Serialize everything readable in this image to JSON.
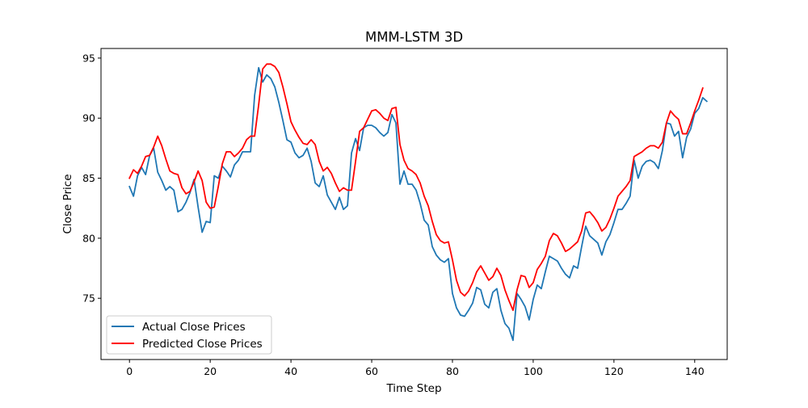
{
  "chart_data": {
    "type": "line",
    "title": "MMM-LSTM 3D",
    "xlabel": "Time Step",
    "ylabel": "Close Price",
    "xlim": [
      -7.05,
      148.05
    ],
    "ylim": [
      69.9,
      95.8
    ],
    "xticks": [
      0,
      20,
      40,
      60,
      80,
      100,
      120,
      140
    ],
    "yticks": [
      75,
      80,
      85,
      90,
      95
    ],
    "grid": false,
    "legend_position": "lower-left",
    "series": [
      {
        "name": "Actual Close Prices",
        "color": "#1f77b4",
        "values": [
          84.3,
          83.5,
          85.2,
          85.9,
          85.3,
          86.9,
          87.5,
          85.5,
          84.8,
          84.0,
          84.3,
          84.0,
          82.2,
          82.4,
          83.0,
          83.8,
          84.9,
          82.6,
          80.5,
          81.4,
          81.3,
          85.2,
          85.0,
          86.0,
          85.6,
          85.1,
          86.1,
          86.5,
          87.2,
          87.2,
          87.2,
          91.9,
          94.2,
          93.0,
          93.6,
          93.3,
          92.6,
          91.3,
          89.8,
          88.2,
          88.0,
          87.1,
          86.7,
          86.9,
          87.5,
          86.4,
          84.6,
          84.3,
          85.2,
          83.6,
          83.0,
          82.4,
          83.4,
          82.4,
          82.7,
          87.1,
          88.3,
          87.3,
          89.2,
          89.4,
          89.4,
          89.2,
          88.8,
          88.5,
          88.8,
          90.3,
          89.6,
          84.5,
          85.6,
          84.5,
          84.5,
          84.0,
          82.9,
          81.5,
          81.1,
          79.3,
          78.6,
          78.2,
          78.0,
          78.3,
          75.4,
          74.2,
          73.6,
          73.5,
          74.0,
          74.6,
          75.9,
          75.7,
          74.5,
          74.2,
          75.5,
          75.8,
          74.0,
          72.9,
          72.5,
          71.5,
          75.4,
          74.9,
          74.3,
          73.2,
          74.9,
          76.1,
          75.8,
          77.2,
          78.5,
          78.3,
          78.1,
          77.5,
          77.0,
          76.7,
          77.7,
          77.5,
          79.3,
          81.0,
          80.2,
          79.9,
          79.6,
          78.6,
          79.7,
          80.3,
          81.3,
          82.4,
          82.4,
          82.9,
          83.5,
          86.5,
          85.0,
          86.0,
          86.4,
          86.5,
          86.3,
          85.8,
          87.3,
          89.6,
          89.5,
          88.5,
          88.9,
          86.7,
          88.4,
          89.1,
          90.4,
          90.8,
          91.7,
          91.4
        ]
      },
      {
        "name": "Predicted Close Prices",
        "color": "#ff0000",
        "values": [
          85.0,
          85.7,
          85.4,
          86.0,
          86.8,
          86.9,
          87.6,
          88.5,
          87.7,
          86.6,
          85.6,
          85.4,
          85.3,
          84.2,
          83.7,
          83.9,
          84.7,
          85.6,
          84.8,
          83.0,
          82.5,
          82.6,
          84.3,
          86.2,
          87.2,
          87.2,
          86.8,
          87.1,
          87.5,
          88.2,
          88.5,
          88.5,
          91.1,
          94.1,
          94.5,
          94.5,
          94.3,
          93.8,
          92.6,
          91.2,
          89.7,
          89.0,
          88.4,
          87.9,
          87.8,
          88.2,
          87.8,
          86.4,
          85.6,
          85.9,
          85.4,
          84.6,
          83.9,
          84.2,
          84.0,
          84.0,
          86.4,
          88.9,
          89.2,
          89.9,
          90.6,
          90.7,
          90.4,
          90.0,
          89.8,
          90.8,
          90.9,
          87.8,
          86.5,
          85.8,
          85.6,
          85.3,
          84.6,
          83.5,
          82.7,
          81.4,
          80.3,
          79.8,
          79.6,
          79.7,
          78.2,
          76.5,
          75.5,
          75.2,
          75.6,
          76.3,
          77.2,
          77.7,
          77.1,
          76.5,
          76.8,
          77.5,
          76.9,
          75.7,
          74.8,
          74.0,
          75.7,
          76.9,
          76.8,
          75.9,
          76.3,
          77.4,
          77.9,
          78.5,
          79.8,
          80.4,
          80.2,
          79.6,
          78.9,
          79.1,
          79.4,
          79.7,
          80.6,
          82.1,
          82.2,
          81.8,
          81.3,
          80.6,
          80.9,
          81.6,
          82.5,
          83.5,
          83.9,
          84.3,
          84.8,
          86.8,
          87.0,
          87.2,
          87.5,
          87.7,
          87.7,
          87.5,
          88.0,
          89.6,
          90.6,
          90.2,
          89.9,
          88.7,
          88.7,
          89.6,
          90.6,
          91.5,
          92.5
        ]
      }
    ]
  }
}
